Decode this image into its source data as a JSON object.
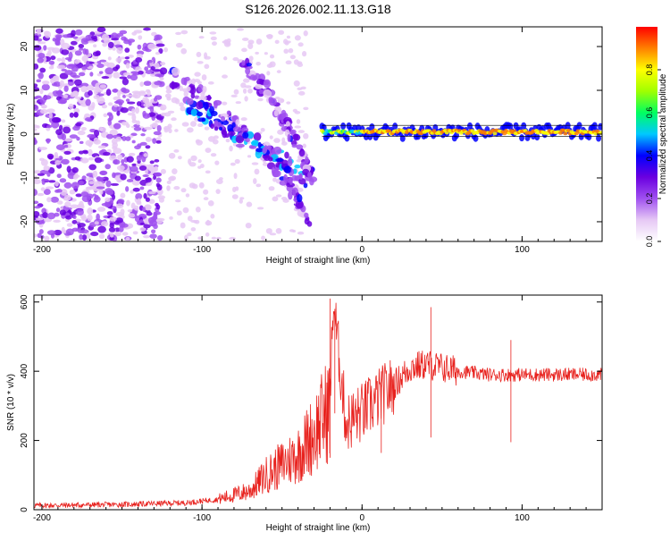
{
  "title": "S126.2026.002.11.13.G18",
  "colors": {
    "snr_line": "#e8221e",
    "background": "#ffffff",
    "colorscale": [
      "#ffffff",
      "#e6c8f5",
      "#a050f0",
      "#6a00e0",
      "#0000ff",
      "#00c8ff",
      "#00ff60",
      "#a0ff00",
      "#ffff00",
      "#ff8000",
      "#ff0000"
    ]
  },
  "chart_data": [
    {
      "type": "heatmap",
      "title": "S126.2026.002.11.13.G18",
      "xlabel": "Height of straight line (km)",
      "ylabel": "Frequency (Hz)",
      "xlim": [
        -205,
        150
      ],
      "ylim": [
        -24.5,
        24.5
      ],
      "xticks": [
        -200,
        -100,
        0,
        100
      ],
      "yticks": [
        -20,
        -10,
        0,
        10,
        20
      ],
      "colorbar": {
        "label": "Normalized spectral amplitude",
        "range": [
          0,
          1
        ],
        "ticks": [
          0.0,
          0.2,
          0.4,
          0.6,
          0.8
        ]
      },
      "features": [
        {
          "name": "noise",
          "x_range": [
            -205,
            -125
          ],
          "y_range": [
            -24,
            24
          ],
          "amplitude": 0.1
        },
        {
          "name": "upper_arc",
          "x": [
            -125,
            -100,
            -80,
            -60,
            -45,
            -32
          ],
          "y": [
            14,
            9,
            2,
            -4,
            -12,
            -20
          ],
          "amplitude": 0.2
        },
        {
          "name": "lower_arc",
          "x": [
            -110,
            -95,
            -80,
            -65,
            -50,
            -35
          ],
          "y": [
            7,
            4,
            0,
            -3,
            -6,
            -10
          ],
          "amplitude": 0.3
        },
        {
          "name": "right_arc",
          "x": [
            -75,
            -60,
            -48,
            -38,
            -30
          ],
          "y": [
            16,
            10,
            3,
            -5,
            -10
          ],
          "amplitude": 0.2
        },
        {
          "name": "straight_line",
          "x_range": [
            -25,
            150
          ],
          "y": 0.5,
          "amplitude": 0.85
        }
      ],
      "grid": false
    },
    {
      "type": "line",
      "xlabel": "Height of straight line (km)",
      "ylabel": "SNR (10 * v/v)",
      "xlim": [
        -205,
        150
      ],
      "ylim": [
        0,
        620
      ],
      "xticks": [
        -200,
        -100,
        0,
        100
      ],
      "yticks": [
        0,
        200,
        400,
        600
      ],
      "series_points": {
        "x": [
          -205,
          -150,
          -110,
          -90,
          -70,
          -60,
          -50,
          -40,
          -30,
          -25,
          -20,
          -18,
          -10,
          0,
          10,
          20,
          30,
          40,
          50,
          60,
          80,
          90,
          100,
          120,
          150
        ],
        "y": [
          12,
          15,
          20,
          30,
          55,
          100,
          130,
          160,
          220,
          260,
          300,
          600,
          250,
          280,
          320,
          360,
          410,
          420,
          410,
          400,
          390,
          390,
          390,
          390,
          390
        ]
      },
      "spikes": [
        {
          "x": -20,
          "y": 610
        },
        {
          "x": -17,
          "y": 580
        },
        {
          "x": 12,
          "y": 400
        },
        {
          "x": 43,
          "y": 585
        },
        {
          "x": 93,
          "y": 490
        }
      ],
      "grid": false
    }
  ]
}
